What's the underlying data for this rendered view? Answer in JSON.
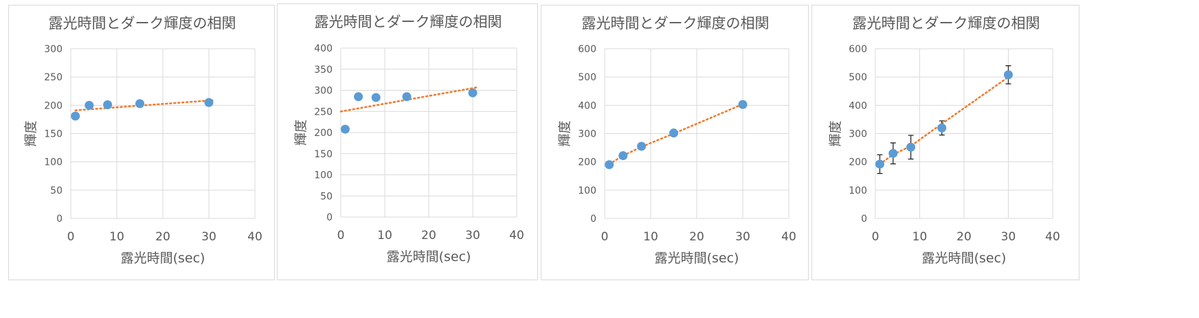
{
  "chart_data": [
    {
      "type": "scatter",
      "title": "露光時間とダーク輝度の相関",
      "xlabel": "露光時間(sec)",
      "ylabel": "輝度",
      "xlim": [
        0,
        40
      ],
      "ylim": [
        0,
        300
      ],
      "xticks": [
        0,
        10,
        20,
        30,
        40
      ],
      "yticks": [
        0,
        50,
        100,
        150,
        200,
        250,
        300
      ],
      "grid": true,
      "colors": {
        "points": "#5B9BD5",
        "trendline": "#ED7D31"
      },
      "series": [
        {
          "x": [
            1,
            4,
            8,
            15,
            30
          ],
          "y": [
            181,
            200,
            201,
            203,
            205
          ]
        }
      ],
      "trendline": {
        "type": "linear",
        "x": [
          1,
          31
        ],
        "y": [
          191,
          209
        ]
      }
    },
    {
      "type": "scatter",
      "title": "露光時間とダーク輝度の相関",
      "xlabel": "露光時間(sec)",
      "ylabel": "輝度",
      "xlim": [
        0,
        40
      ],
      "ylim": [
        0,
        400
      ],
      "xticks": [
        0,
        10,
        20,
        30,
        40
      ],
      "yticks": [
        0,
        50,
        100,
        150,
        200,
        250,
        300,
        350,
        400
      ],
      "grid": true,
      "colors": {
        "points": "#5B9BD5",
        "trendline": "#ED7D31"
      },
      "series": [
        {
          "x": [
            1,
            4,
            8,
            15,
            30
          ],
          "y": [
            208,
            285,
            283,
            285,
            294
          ]
        }
      ],
      "trendline": {
        "type": "linear",
        "x": [
          0,
          31
        ],
        "y": [
          250,
          307
        ]
      }
    },
    {
      "type": "scatter",
      "title": "露光時間とダーク輝度の相関",
      "xlabel": "露光時間(sec)",
      "ylabel": "輝度",
      "xlim": [
        0,
        40
      ],
      "ylim": [
        0,
        600
      ],
      "xticks": [
        0,
        10,
        20,
        30,
        40
      ],
      "yticks": [
        0,
        100,
        200,
        300,
        400,
        500,
        600
      ],
      "grid": true,
      "colors": {
        "points": "#5B9BD5",
        "trendline": "#ED7D31"
      },
      "series": [
        {
          "x": [
            1,
            4,
            8,
            15,
            30
          ],
          "y": [
            190,
            222,
            255,
            302,
            403
          ]
        }
      ],
      "trendline": {
        "type": "polyline",
        "x": [
          1,
          4,
          8,
          15,
          30
        ],
        "y": [
          192,
          222,
          253,
          300,
          404
        ]
      }
    },
    {
      "type": "scatter",
      "title": "露光時間とダーク輝度の相関",
      "xlabel": "露光時間(sec)",
      "ylabel": "輝度",
      "xlim": [
        0,
        40
      ],
      "ylim": [
        0,
        600
      ],
      "xticks": [
        0,
        10,
        20,
        30,
        40
      ],
      "yticks": [
        0,
        100,
        200,
        300,
        400,
        500,
        600
      ],
      "grid": true,
      "colors": {
        "points": "#5B9BD5",
        "trendline": "#ED7D31"
      },
      "series": [
        {
          "x": [
            1,
            4,
            8,
            15,
            30
          ],
          "y": [
            192,
            230,
            252,
            320,
            508
          ],
          "error": [
            33,
            37,
            42,
            25,
            32
          ]
        }
      ],
      "trendline": {
        "type": "polyline",
        "x": [
          1,
          4,
          8,
          15,
          30
        ],
        "y": [
          192,
          226,
          256,
          335,
          500
        ]
      }
    }
  ]
}
